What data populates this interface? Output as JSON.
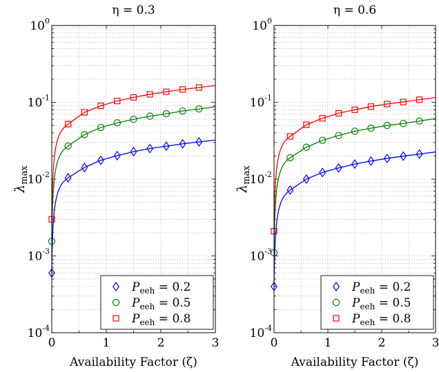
{
  "chart_data": [
    {
      "type": "line",
      "title": "η = 0.3",
      "xlabel": "Availability Factor (ζ)",
      "ylabel": "λmax",
      "yscale": "log",
      "xlim": [
        0,
        3
      ],
      "ylim": [
        0.0001,
        1
      ],
      "grid": true,
      "legend_position": "bottom-right",
      "x_ticks": [
        "0",
        "1",
        "2",
        "3"
      ],
      "y_ticks": [
        {
          "base": "10",
          "exp": "-4"
        },
        {
          "base": "10",
          "exp": "-3"
        },
        {
          "base": "10",
          "exp": "-2"
        },
        {
          "base": "10",
          "exp": "-1"
        },
        {
          "base": "10",
          "exp": "0"
        }
      ],
      "series": [
        {
          "name": "Peeh = 0.2",
          "name_value": "0.2",
          "color": "#0000ff",
          "marker": "diamond",
          "x": [
            0,
            0.3,
            0.6,
            0.9,
            1.2,
            1.5,
            1.8,
            2.1,
            2.4,
            2.7
          ],
          "y": [
            0.0006,
            0.0104,
            0.0142,
            0.0176,
            0.0202,
            0.0228,
            0.025,
            0.0268,
            0.0288,
            0.0305
          ]
        },
        {
          "name": "Peeh = 0.5",
          "name_value": "0.5",
          "color": "#008000",
          "marker": "circle",
          "x": [
            0,
            0.3,
            0.6,
            0.9,
            1.2,
            1.5,
            1.8,
            2.1,
            2.4,
            2.7
          ],
          "y": [
            0.00155,
            0.027,
            0.038,
            0.047,
            0.054,
            0.06,
            0.066,
            0.071,
            0.077,
            0.082
          ]
        },
        {
          "name": "Peeh = 0.8",
          "name_value": "0.8",
          "color": "#ff0000",
          "marker": "square",
          "x": [
            0,
            0.3,
            0.6,
            0.9,
            1.2,
            1.5,
            1.8,
            2.1,
            2.4,
            2.7
          ],
          "y": [
            0.003,
            0.052,
            0.074,
            0.09,
            0.104,
            0.116,
            0.127,
            0.137,
            0.147,
            0.156
          ]
        }
      ]
    },
    {
      "type": "line",
      "title": "η = 0.6",
      "xlabel": "Availability Factor (ζ)",
      "ylabel": "λmax",
      "yscale": "log",
      "xlim": [
        0,
        3
      ],
      "ylim": [
        0.0001,
        1
      ],
      "grid": true,
      "legend_position": "bottom-right",
      "x_ticks": [
        "0",
        "1",
        "2",
        "3"
      ],
      "y_ticks": [
        {
          "base": "10",
          "exp": "-4"
        },
        {
          "base": "10",
          "exp": "-3"
        },
        {
          "base": "10",
          "exp": "-2"
        },
        {
          "base": "10",
          "exp": "-1"
        },
        {
          "base": "10",
          "exp": "0"
        }
      ],
      "series": [
        {
          "name": "Peeh = 0.2",
          "name_value": "0.2",
          "color": "#0000ff",
          "marker": "diamond",
          "x": [
            0,
            0.3,
            0.6,
            0.9,
            1.2,
            1.5,
            1.8,
            2.1,
            2.4,
            2.7
          ],
          "y": [
            0.0004,
            0.0072,
            0.01,
            0.0122,
            0.014,
            0.0157,
            0.0172,
            0.0186,
            0.0199,
            0.0212
          ]
        },
        {
          "name": "Peeh = 0.5",
          "name_value": "0.5",
          "color": "#008000",
          "marker": "circle",
          "x": [
            0,
            0.3,
            0.6,
            0.9,
            1.2,
            1.5,
            1.8,
            2.1,
            2.4,
            2.7
          ],
          "y": [
            0.0011,
            0.019,
            0.026,
            0.032,
            0.037,
            0.042,
            0.046,
            0.05,
            0.053,
            0.057
          ]
        },
        {
          "name": "Peeh = 0.8",
          "name_value": "0.8",
          "color": "#ff0000",
          "marker": "square",
          "x": [
            0,
            0.3,
            0.6,
            0.9,
            1.2,
            1.5,
            1.8,
            2.1,
            2.4,
            2.7
          ],
          "y": [
            0.0021,
            0.036,
            0.051,
            0.062,
            0.072,
            0.08,
            0.088,
            0.095,
            0.101,
            0.108
          ]
        }
      ]
    }
  ]
}
